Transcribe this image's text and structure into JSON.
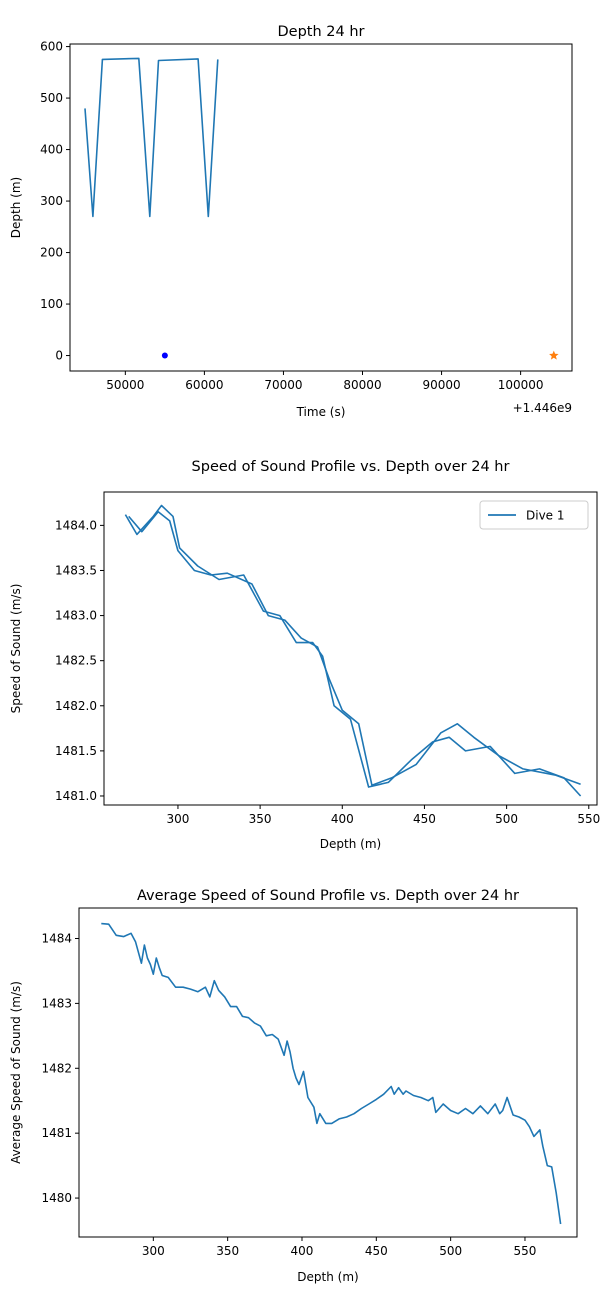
{
  "chart_data": [
    {
      "type": "line",
      "title": "Depth 24 hr",
      "xlabel": "Time (s)",
      "ylabel": "Depth (m)",
      "x_offset_label": "+1.446e9",
      "xlim": [
        43000,
        106500
      ],
      "ylim": [
        -30,
        605
      ],
      "xticks": [
        50000,
        60000,
        70000,
        80000,
        90000,
        100000
      ],
      "xtick_labels": [
        "50000",
        "60000",
        "70000",
        "80000",
        "90000",
        "100000"
      ],
      "yticks": [
        0,
        100,
        200,
        300,
        400,
        500,
        600
      ],
      "ytick_labels": [
        "0",
        "100",
        "200",
        "300",
        "400",
        "500",
        "600"
      ],
      "series": [
        {
          "color": "#1f77b4",
          "x": [
            44900,
            45900,
            47100,
            51700,
            53100,
            54200,
            59200,
            60500,
            61700
          ],
          "y": [
            480,
            270,
            575,
            577,
            270,
            573,
            576,
            270,
            575
          ]
        }
      ],
      "markers": [
        {
          "shape": "dot",
          "color": "#0000ff",
          "x": 55000,
          "y": 0
        },
        {
          "shape": "star",
          "color": "#ff7f0e",
          "x": 104200,
          "y": 0
        }
      ]
    },
    {
      "type": "line",
      "title": "Speed of Sound Profile vs. Depth over 24 hr",
      "xlabel": "Depth (m)",
      "ylabel": "Speed of Sound (m/s)",
      "xlim": [
        255,
        555
      ],
      "ylim": [
        1480.9,
        1484.37
      ],
      "xticks": [
        300,
        350,
        400,
        450,
        500,
        550
      ],
      "xtick_labels": [
        "300",
        "350",
        "400",
        "450",
        "500",
        "550"
      ],
      "yticks": [
        1481.0,
        1481.5,
        1482.0,
        1482.5,
        1483.0,
        1483.5,
        1484.0
      ],
      "ytick_labels": [
        "1481.0",
        "1481.5",
        "1482.0",
        "1482.5",
        "1483.0",
        "1483.5",
        "1484.0"
      ],
      "legend": {
        "location": "top-right",
        "entries": [
          "Dive 1"
        ]
      },
      "series": [
        {
          "name": "Dive 1",
          "color": "#1f77b4",
          "x": [
            270,
            278,
            288,
            295,
            300,
            310,
            320,
            330,
            345,
            355,
            365,
            375,
            385,
            392,
            400,
            410,
            418,
            430,
            445,
            460,
            470,
            480,
            495,
            510,
            530,
            545
          ],
          "y": [
            1484.1,
            1483.93,
            1484.15,
            1484.05,
            1483.72,
            1483.5,
            1483.45,
            1483.47,
            1483.35,
            1483.0,
            1482.95,
            1482.75,
            1482.65,
            1482.3,
            1481.95,
            1481.8,
            1481.12,
            1481.2,
            1481.35,
            1481.7,
            1481.8,
            1481.65,
            1481.45,
            1481.3,
            1481.23,
            1481.13
          ]
        },
        {
          "color": "#1f77b4",
          "x": [
            268,
            275,
            285,
            290,
            297,
            301,
            312,
            325,
            340,
            352,
            362,
            372,
            382,
            388,
            395,
            405,
            416,
            428,
            442,
            455,
            465,
            475,
            490,
            505,
            520,
            535,
            545
          ],
          "y": [
            1484.12,
            1483.9,
            1484.1,
            1484.22,
            1484.1,
            1483.75,
            1483.55,
            1483.4,
            1483.45,
            1483.05,
            1483.0,
            1482.7,
            1482.7,
            1482.55,
            1482.0,
            1481.85,
            1481.1,
            1481.15,
            1481.4,
            1481.6,
            1481.65,
            1481.5,
            1481.55,
            1481.25,
            1481.3,
            1481.2,
            1481.0
          ]
        }
      ]
    },
    {
      "type": "line",
      "title": "Average Speed of Sound Profile vs. Depth over 24 hr",
      "xlabel": "Depth (m)",
      "ylabel": "Average Speed of Sound (m/s)",
      "xlim": [
        250,
        585
      ],
      "ylim": [
        1479.4,
        1484.47
      ],
      "xticks": [
        300,
        350,
        400,
        450,
        500,
        550
      ],
      "xtick_labels": [
        "300",
        "350",
        "400",
        "450",
        "500",
        "550"
      ],
      "yticks": [
        1480,
        1481,
        1482,
        1483,
        1484
      ],
      "ytick_labels": [
        "1480",
        "1481",
        "1482",
        "1483",
        "1484"
      ],
      "series": [
        {
          "color": "#1f77b4",
          "x": [
            265,
            270,
            275,
            280,
            285,
            288,
            292,
            294,
            296,
            298,
            300,
            302,
            304,
            306,
            310,
            315,
            320,
            325,
            330,
            335,
            338,
            341,
            344,
            348,
            352,
            356,
            360,
            364,
            368,
            372,
            376,
            380,
            384,
            388,
            390,
            392,
            394,
            396,
            398,
            401,
            404,
            408,
            410,
            412,
            416,
            420,
            425,
            430,
            435,
            440,
            445,
            450,
            455,
            460,
            462,
            465,
            468,
            470,
            475,
            480,
            485,
            488,
            490,
            495,
            500,
            505,
            510,
            515,
            520,
            525,
            530,
            533,
            535,
            538,
            542,
            546,
            550,
            553,
            556,
            560,
            562,
            565,
            568,
            571,
            574
          ],
          "y": [
            1484.23,
            1484.22,
            1484.05,
            1484.03,
            1484.08,
            1483.95,
            1483.62,
            1483.9,
            1483.7,
            1483.6,
            1483.45,
            1483.7,
            1483.55,
            1483.43,
            1483.4,
            1483.25,
            1483.25,
            1483.22,
            1483.18,
            1483.25,
            1483.1,
            1483.35,
            1483.2,
            1483.1,
            1482.95,
            1482.95,
            1482.8,
            1482.78,
            1482.7,
            1482.65,
            1482.5,
            1482.52,
            1482.45,
            1482.2,
            1482.42,
            1482.25,
            1482.0,
            1481.85,
            1481.75,
            1481.95,
            1481.55,
            1481.4,
            1481.15,
            1481.3,
            1481.15,
            1481.15,
            1481.22,
            1481.25,
            1481.3,
            1481.38,
            1481.45,
            1481.52,
            1481.6,
            1481.72,
            1481.6,
            1481.7,
            1481.6,
            1481.65,
            1481.58,
            1481.55,
            1481.5,
            1481.55,
            1481.32,
            1481.45,
            1481.35,
            1481.3,
            1481.38,
            1481.3,
            1481.42,
            1481.3,
            1481.45,
            1481.3,
            1481.35,
            1481.55,
            1481.28,
            1481.25,
            1481.2,
            1481.1,
            1480.95,
            1481.05,
            1480.8,
            1480.5,
            1480.48,
            1480.08,
            1479.6
          ]
        }
      ]
    }
  ]
}
